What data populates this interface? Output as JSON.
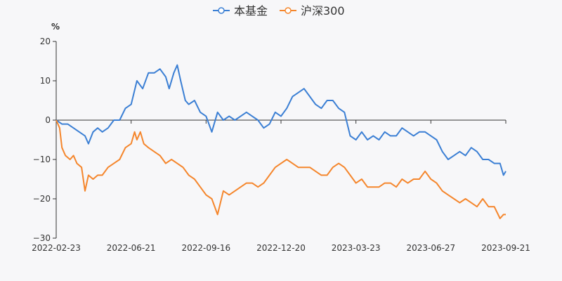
{
  "chart_data": {
    "type": "line",
    "ylabel": "%",
    "ylim": [
      -30,
      20
    ],
    "yticks": [
      20,
      10,
      0,
      -10,
      -20,
      -30
    ],
    "ytick_labels": [
      "20",
      "10",
      "0",
      "−10",
      "−20",
      "−30"
    ],
    "x_ticks": [
      "2022-02-23",
      "2022-06-21",
      "2022-09-16",
      "2022-12-20",
      "2023-03-23",
      "2023-06-27",
      "2023-09-21"
    ],
    "x_range": [
      0,
      390
    ],
    "series": [
      {
        "name": "本基金",
        "color": "#3b7fd4",
        "x": [
          0,
          5,
          10,
          15,
          20,
          25,
          28,
          32,
          36,
          40,
          45,
          50,
          55,
          60,
          65,
          70,
          75,
          80,
          85,
          90,
          95,
          98,
          102,
          105,
          108,
          112,
          115,
          120,
          125,
          130,
          135,
          140,
          145,
          150,
          155,
          160,
          165,
          170,
          175,
          180,
          185,
          190,
          195,
          200,
          205,
          210,
          215,
          220,
          225,
          230,
          235,
          240,
          245,
          250,
          255,
          260,
          265,
          270,
          275,
          280,
          285,
          290,
          295,
          300,
          305,
          310,
          315,
          320,
          325,
          330,
          335,
          340,
          345,
          350,
          355,
          360,
          365,
          370,
          375,
          380,
          385,
          388,
          390
        ],
        "values": [
          0,
          -1,
          -1,
          -2,
          -3,
          -4,
          -6,
          -3,
          -2,
          -3,
          -2,
          0,
          0,
          3,
          4,
          10,
          8,
          12,
          12,
          13,
          11,
          8,
          12,
          14,
          10,
          5,
          4,
          5,
          2,
          1,
          -3,
          2,
          0,
          1,
          0,
          1,
          2,
          1,
          0,
          -2,
          -1,
          2,
          1,
          3,
          6,
          7,
          8,
          6,
          4,
          3,
          5,
          5,
          3,
          2,
          -4,
          -5,
          -3,
          -5,
          -4,
          -5,
          -3,
          -4,
          -4,
          -2,
          -3,
          -4,
          -3,
          -3,
          -4,
          -5,
          -8,
          -10,
          -9,
          -8,
          -9,
          -7,
          -8,
          -10,
          -10,
          -11,
          -11,
          -14,
          -13
        ]
      },
      {
        "name": "沪深300",
        "color": "#f5862c",
        "x": [
          0,
          3,
          5,
          8,
          12,
          15,
          18,
          22,
          25,
          28,
          32,
          36,
          40,
          45,
          50,
          55,
          60,
          65,
          68,
          70,
          73,
          76,
          80,
          85,
          90,
          95,
          100,
          105,
          110,
          115,
          120,
          125,
          130,
          135,
          140,
          145,
          150,
          155,
          160,
          165,
          170,
          175,
          180,
          185,
          190,
          195,
          200,
          205,
          210,
          215,
          220,
          225,
          230,
          235,
          240,
          245,
          250,
          255,
          260,
          265,
          270,
          275,
          280,
          285,
          290,
          295,
          300,
          305,
          310,
          315,
          320,
          325,
          330,
          335,
          340,
          345,
          350,
          355,
          360,
          365,
          370,
          375,
          380,
          385,
          388,
          390
        ],
        "values": [
          0,
          -2,
          -7,
          -9,
          -10,
          -9,
          -11,
          -12,
          -18,
          -14,
          -15,
          -14,
          -14,
          -12,
          -11,
          -10,
          -7,
          -6,
          -3,
          -5,
          -3,
          -6,
          -7,
          -8,
          -9,
          -11,
          -10,
          -11,
          -12,
          -14,
          -15,
          -17,
          -19,
          -20,
          -24,
          -18,
          -19,
          -18,
          -17,
          -16,
          -16,
          -17,
          -16,
          -14,
          -12,
          -11,
          -10,
          -11,
          -12,
          -12,
          -12,
          -13,
          -14,
          -14,
          -12,
          -11,
          -12,
          -14,
          -16,
          -15,
          -17,
          -17,
          -17,
          -16,
          -16,
          -17,
          -15,
          -16,
          -15,
          -15,
          -13,
          -15,
          -16,
          -18,
          -19,
          -20,
          -21,
          -20,
          -21,
          -22,
          -20,
          -22,
          -22,
          -25,
          -24,
          -24
        ]
      }
    ]
  }
}
